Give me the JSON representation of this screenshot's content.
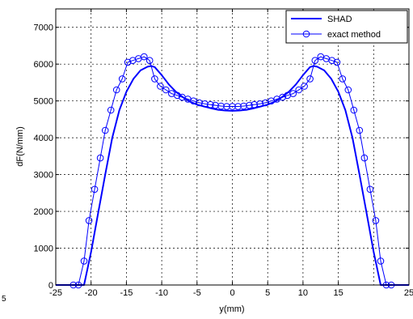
{
  "chart_data": {
    "type": "line",
    "title": "",
    "xlabel": "y(mm)",
    "ylabel": "dF(N/mm)",
    "xlim": [
      -25,
      25
    ],
    "ylim": [
      0,
      7500
    ],
    "xticks": [
      -25,
      -20,
      -15,
      -10,
      -5,
      0,
      5,
      10,
      15,
      25
    ],
    "xtick_labels": [
      "-25",
      "-20",
      "-15",
      "-10",
      "-5",
      "0",
      "5",
      "10",
      "15",
      "25"
    ],
    "xgrid": [
      -20,
      -15,
      -10,
      -5,
      0,
      5,
      10,
      15,
      20
    ],
    "yticks": [
      0,
      1000,
      2000,
      3000,
      4000,
      5000,
      6000,
      7000
    ],
    "grid": true,
    "legend_position": "top-right",
    "series": [
      {
        "name": "SHAD",
        "style": "solid-line",
        "color": "#0000ff",
        "x": [
          -25,
          -21,
          -20,
          -19,
          -18,
          -17,
          -16,
          -15,
          -14,
          -13,
          -12,
          -11.5,
          -11,
          -10,
          -9,
          -8,
          -7,
          -6,
          -5,
          -4,
          -3,
          -2,
          -1,
          0,
          1,
          2,
          3,
          4,
          5,
          6,
          7,
          8,
          9,
          10,
          11,
          11.5,
          12,
          13,
          14,
          15,
          16,
          17,
          18,
          19,
          20,
          21,
          25
        ],
        "y": [
          0,
          0,
          900,
          1950,
          3000,
          4000,
          4750,
          5250,
          5600,
          5830,
          5930,
          5950,
          5920,
          5700,
          5450,
          5250,
          5100,
          4980,
          4900,
          4850,
          4800,
          4760,
          4740,
          4730,
          4740,
          4760,
          4800,
          4850,
          4900,
          4980,
          5100,
          5250,
          5450,
          5700,
          5920,
          5950,
          5930,
          5830,
          5600,
          5250,
          4750,
          4000,
          3000,
          1950,
          900,
          0,
          0
        ]
      },
      {
        "name": "exact method",
        "style": "line-with-circles",
        "color": "#0000ff",
        "x": [
          -25,
          -22.5,
          -21.8,
          -21,
          -20.3,
          -19.5,
          -18.7,
          -18,
          -17.2,
          -16.4,
          -15.6,
          -14.8,
          -14.1,
          -13.3,
          -12.5,
          -11.7,
          -11,
          -10.2,
          -9.4,
          -8.6,
          -7.8,
          -7.1,
          -6.3,
          -5.5,
          -4.7,
          -3.9,
          -3.1,
          -2.4,
          -1.6,
          -0.8,
          0,
          0.8,
          1.6,
          2.4,
          3.1,
          3.9,
          4.7,
          5.5,
          6.3,
          7.1,
          7.8,
          8.6,
          9.4,
          10.2,
          11,
          11.7,
          12.5,
          13.3,
          14.1,
          14.8,
          15.6,
          16.4,
          17.2,
          18,
          18.7,
          19.5,
          20.3,
          21,
          21.8,
          22.5,
          25
        ],
        "y": [
          0,
          0,
          0,
          650,
          1750,
          2600,
          3450,
          4200,
          4750,
          5300,
          5600,
          6050,
          6100,
          6150,
          6200,
          6100,
          5600,
          5400,
          5300,
          5200,
          5150,
          5100,
          5050,
          5000,
          4950,
          4920,
          4900,
          4880,
          4860,
          4850,
          4850,
          4850,
          4860,
          4880,
          4900,
          4920,
          4950,
          5000,
          5050,
          5100,
          5150,
          5200,
          5300,
          5400,
          5600,
          6100,
          6200,
          6150,
          6100,
          6050,
          5600,
          5300,
          4750,
          4200,
          3450,
          2600,
          1750,
          650,
          0,
          0,
          0
        ],
        "marker_x": [
          -22.5,
          -21.8,
          -21,
          -20.3,
          -19.5,
          -18.7,
          -18,
          -17.2,
          -16.4,
          -15.6,
          -14.8,
          -14.1,
          -13.3,
          -12.5,
          -11.7,
          -11,
          -10.2,
          -9.4,
          -8.6,
          -7.8,
          -7.1,
          -6.3,
          -5.5,
          -4.7,
          -3.9,
          -3.1,
          -2.4,
          -1.6,
          -0.8,
          0,
          0.8,
          1.6,
          2.4,
          3.1,
          3.9,
          4.7,
          5.5,
          6.3,
          7.1,
          7.8,
          8.6,
          9.4,
          10.2,
          11,
          11.7,
          12.5,
          13.3,
          14.1,
          14.8,
          15.6,
          16.4,
          17.2,
          18,
          18.7,
          19.5,
          20.3,
          21,
          21.8,
          22.5
        ],
        "marker_y": [
          0,
          0,
          650,
          1750,
          2600,
          3450,
          4200,
          4750,
          5300,
          5600,
          6050,
          6100,
          6150,
          6200,
          6100,
          5600,
          5400,
          5300,
          5200,
          5150,
          5100,
          5050,
          5000,
          4950,
          4920,
          4900,
          4880,
          4860,
          4850,
          4850,
          4850,
          4860,
          4880,
          4900,
          4920,
          4950,
          5000,
          5050,
          5100,
          5150,
          5200,
          5300,
          5400,
          5600,
          6100,
          6200,
          6150,
          6100,
          6050,
          5600,
          5300,
          4750,
          4200,
          3450,
          2600,
          1750,
          650,
          0,
          0
        ]
      }
    ]
  },
  "stray_text": "5"
}
